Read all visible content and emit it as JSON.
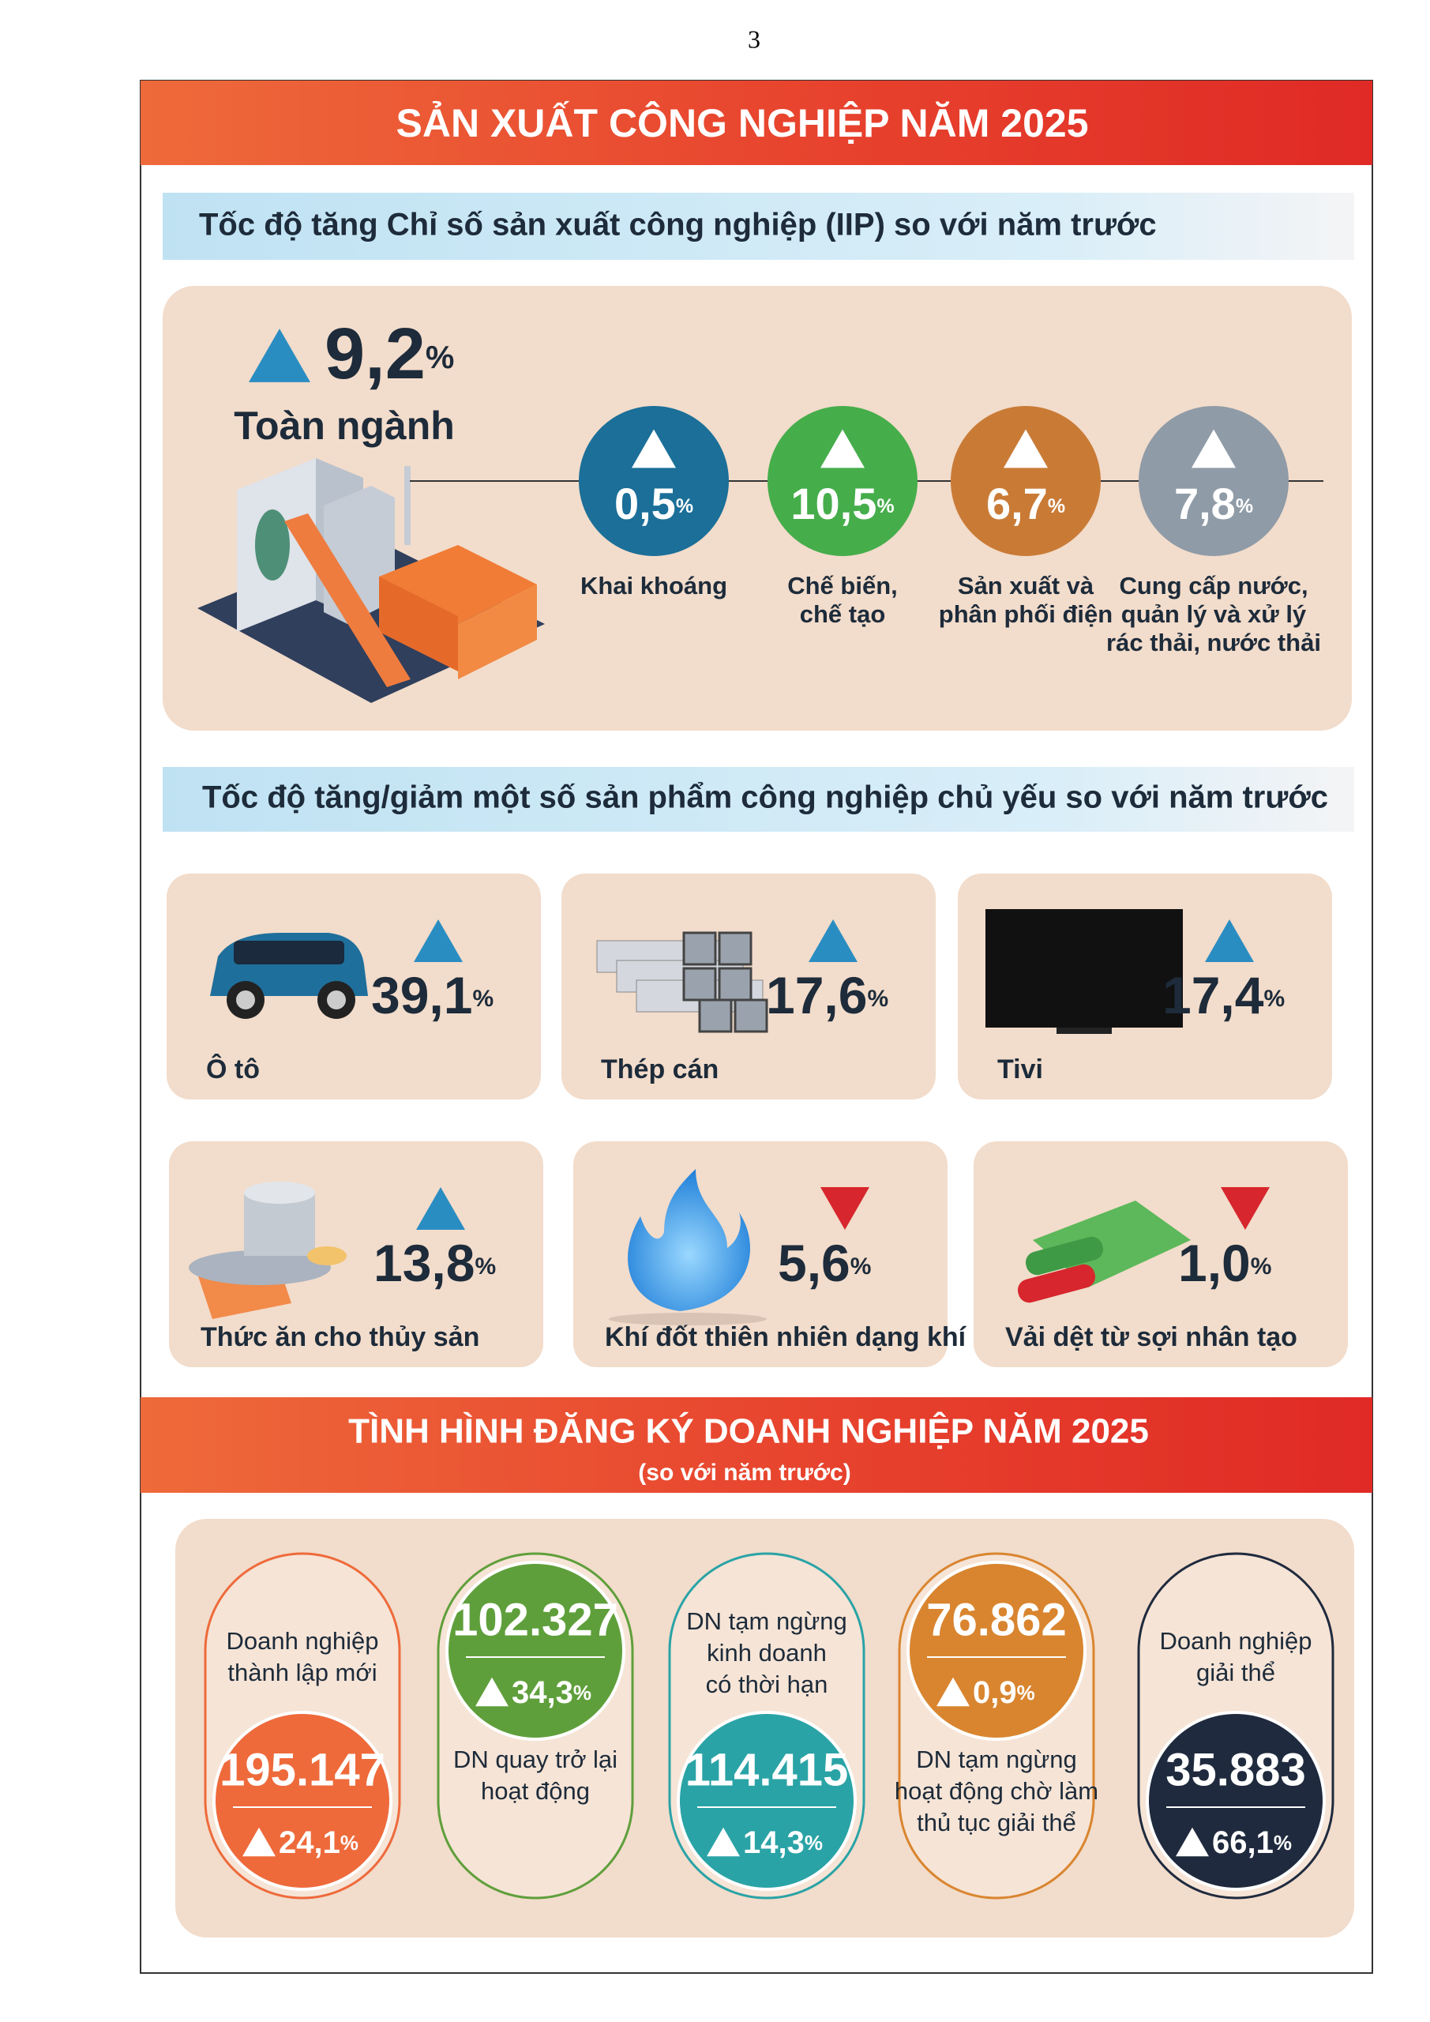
{
  "page_number": "3",
  "header": {
    "title": "SẢN XUẤT CÔNG NGHIỆP NĂM 2025"
  },
  "iip": {
    "subtitle": "Tốc độ tăng Chỉ số sản xuất công nghiệp (IIP) so với năm trước",
    "overall": {
      "value": "9,2",
      "unit": "%",
      "label": "Toàn ngành",
      "direction": "up"
    },
    "sectors": [
      {
        "value": "0,5",
        "unit": "%",
        "label_lines": [
          "Khai khoáng"
        ],
        "direction": "up",
        "color": "#1b6f98"
      },
      {
        "value": "10,5",
        "unit": "%",
        "label_lines": [
          "Chế biến,",
          "chế tạo"
        ],
        "direction": "up",
        "color": "#46ad4b"
      },
      {
        "value": "6,7",
        "unit": "%",
        "label_lines": [
          "Sản xuất và",
          "phân phối điện"
        ],
        "direction": "up",
        "color": "#c97b36"
      },
      {
        "value": "7,8",
        "unit": "%",
        "label_lines": [
          "Cung cấp nước,",
          "quản lý và xử lý",
          "rác thải, nước thải"
        ],
        "direction": "up",
        "color": "#8f9ba7"
      }
    ]
  },
  "products": {
    "subtitle": "Tốc độ tăng/giảm một số sản phẩm công nghiệp chủ yếu so với năm trước",
    "items": [
      {
        "label": "Ô tô",
        "value": "39,1",
        "unit": "%",
        "direction": "up"
      },
      {
        "label": "Thép cán",
        "value": "17,6",
        "unit": "%",
        "direction": "up"
      },
      {
        "label": "Tivi",
        "value": "17,4",
        "unit": "%",
        "direction": "up"
      },
      {
        "label": "Thức ăn cho thủy sản",
        "value": "13,8",
        "unit": "%",
        "direction": "up"
      },
      {
        "label": "Khí đốt thiên nhiên dạng khí",
        "value": "5,6",
        "unit": "%",
        "direction": "down"
      },
      {
        "label": "Vải dệt từ sợi nhân tạo",
        "value": "1,0",
        "unit": "%",
        "direction": "down"
      }
    ]
  },
  "business": {
    "title": "TÌNH HÌNH ĐĂNG KÝ DOANH NGHIỆP NĂM 2025",
    "subtitle": "(so với năm trước)",
    "items": [
      {
        "label_lines": [
          "Doanh nghiệp",
          "thành lập mới"
        ],
        "count": "195.147",
        "change": "24,1",
        "unit": "%",
        "direction": "up",
        "color": "#ee6a3b",
        "circle_position": "bottom"
      },
      {
        "label_lines": [
          "DN quay trở lại",
          "hoạt động"
        ],
        "count": "102.327",
        "change": "34,3",
        "unit": "%",
        "direction": "up",
        "color": "#5f9f3b",
        "circle_position": "top"
      },
      {
        "label_lines": [
          "DN tạm ngừng",
          "kinh doanh",
          "có thời hạn"
        ],
        "count": "114.415",
        "change": "14,3",
        "unit": "%",
        "direction": "up",
        "color": "#2aa3a6",
        "circle_position": "bottom"
      },
      {
        "label_lines": [
          "DN tạm ngừng",
          "hoạt động chờ làm",
          "thủ tục giải thể"
        ],
        "count": "76.862",
        "change": "0,9",
        "unit": "%",
        "direction": "up",
        "color": "#d9852f",
        "circle_position": "top"
      },
      {
        "label_lines": [
          "Doanh nghiệp",
          "giải thể"
        ],
        "count": "35.883",
        "change": "66,1",
        "unit": "%",
        "direction": "up",
        "color": "#1f2a3e",
        "circle_position": "bottom"
      }
    ]
  }
}
